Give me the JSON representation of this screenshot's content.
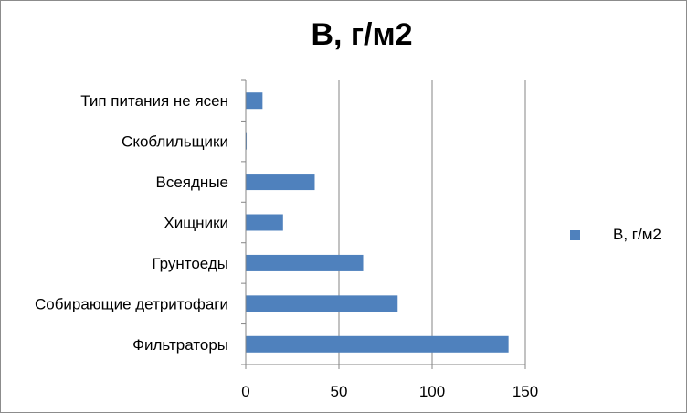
{
  "chart_data": {
    "type": "bar",
    "orientation": "horizontal",
    "title": "В, г/м2",
    "categories": [
      "Тип питания не ясен",
      "Скоблильщики",
      "Всеядные",
      "Хищники",
      "Грунтоеды",
      "Собирающие детритофаги",
      "Фильтраторы"
    ],
    "series": [
      {
        "name": "В, г/м2",
        "values": [
          9,
          0.5,
          37,
          20,
          63,
          81.5,
          141
        ]
      }
    ],
    "xlim": [
      0,
      150
    ],
    "xticks": [
      0,
      50,
      100,
      150
    ],
    "grid": true,
    "legend_position": "right",
    "bar_color": "#4f81bd"
  }
}
